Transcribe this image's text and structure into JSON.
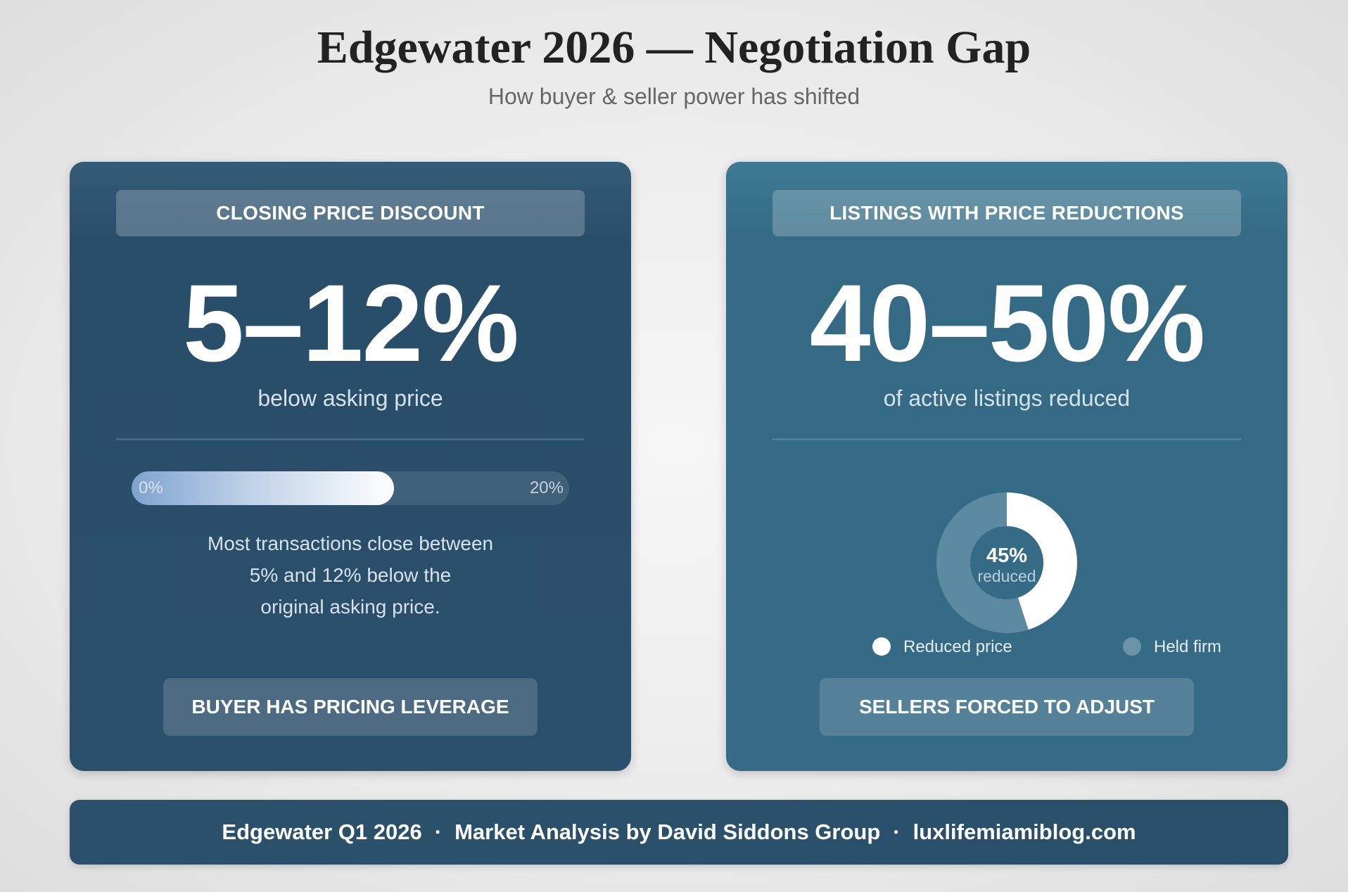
{
  "header": {
    "title": "Edgewater 2026 — Negotiation Gap",
    "subtitle": "How buyer & seller power has shifted"
  },
  "cards": {
    "left": {
      "heading": "CLOSING PRICE DISCOUNT",
      "big_value": "5–12%",
      "caption": "below asking price",
      "bar_min_label": "0%",
      "bar_max_label": "20%",
      "description": [
        "Most transactions close between",
        "5% and 12% below the",
        "original asking price."
      ],
      "footer_label": "BUYER HAS PRICING LEVERAGE"
    },
    "right": {
      "heading": "LISTINGS WITH PRICE REDUCTIONS",
      "big_value": "40–50%",
      "caption": "of active listings reduced",
      "donut_center_value": "45%",
      "donut_center_label": "reduced",
      "legend": [
        "Reduced price",
        "Held firm"
      ],
      "footer_label": "SELLERS FORCED TO ADJUST"
    }
  },
  "chart_data": [
    {
      "type": "bar",
      "orientation": "horizontal",
      "categories": [
        "Closing price discount"
      ],
      "values": [
        12
      ],
      "xlim": [
        0,
        20
      ],
      "unit": "%"
    },
    {
      "type": "pie",
      "donut": true,
      "categories": [
        "Reduced price",
        "Held firm"
      ],
      "values": [
        45,
        55
      ],
      "colors": [
        "#ffffff",
        "#5c8aa1"
      ]
    }
  ],
  "footer": {
    "parts": [
      "Edgewater Q1 2026",
      "Market Analysis by David Siddons Group",
      "luxlifemiamiblog.com"
    ],
    "separator": "·"
  },
  "colors": {
    "card_left": "#294e69",
    "card_right": "#346a83",
    "footer_bg": "#2b506b",
    "donut_reduced": "#ffffff",
    "donut_held": "#5c8aa1"
  }
}
